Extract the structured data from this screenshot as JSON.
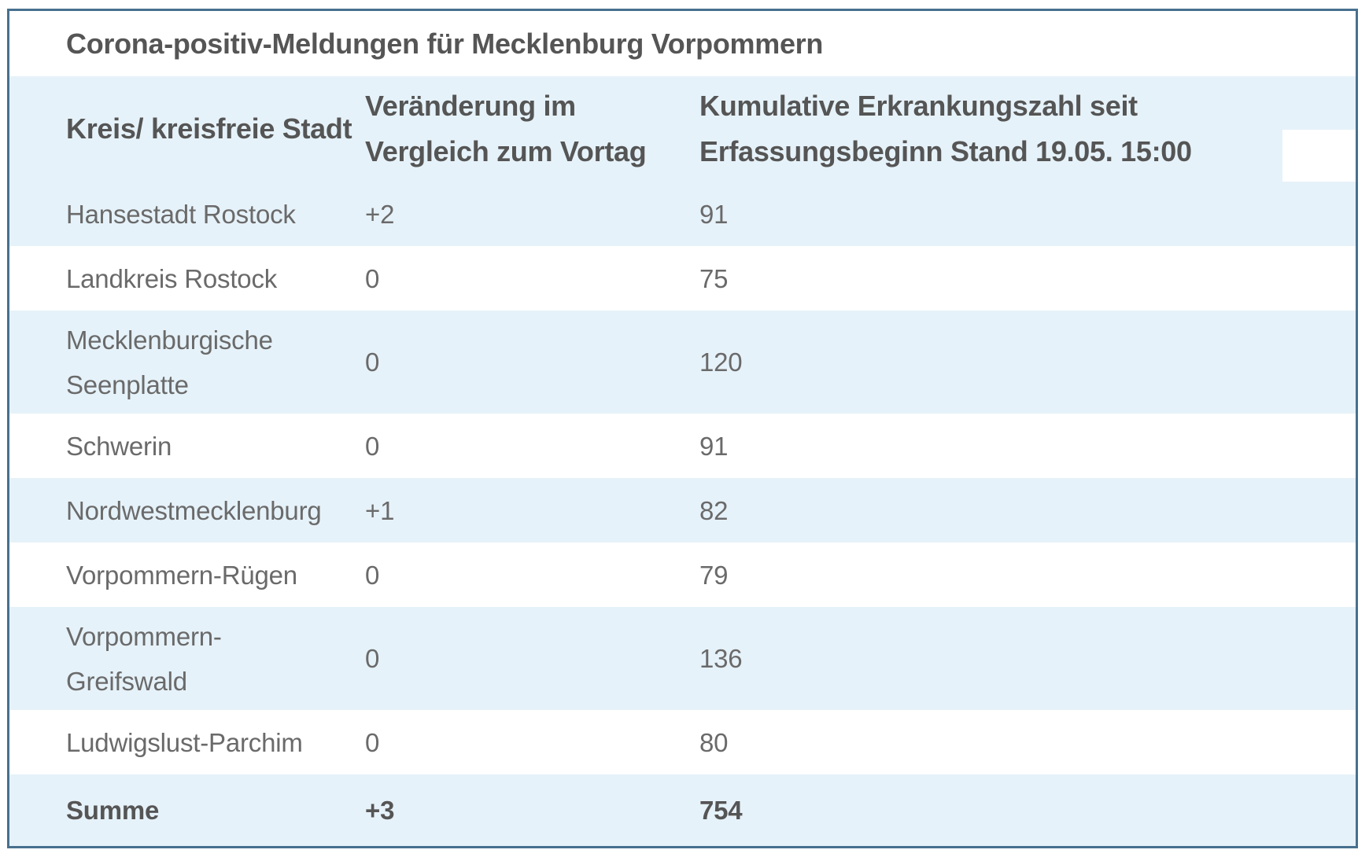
{
  "title": "Corona-positiv-Meldungen für Mecklenburg Vorpommern",
  "table": {
    "columns": [
      {
        "label": "Kreis/ kreisfreie Stadt"
      },
      {
        "label": "Veränderung im\nVergleich zum Vortag"
      },
      {
        "label": "Kumulative Erkrankungszahl seit\nErfassungsbeginn Stand 19.05. 15:00"
      }
    ],
    "rows": [
      {
        "kreis": "Hansestadt Rostock",
        "change": "+2",
        "cumulative": "91"
      },
      {
        "kreis": "Landkreis Rostock",
        "change": "0",
        "cumulative": "75"
      },
      {
        "kreis": "Mecklenburgische\nSeenplatte",
        "change": "0",
        "cumulative": "120"
      },
      {
        "kreis": "Schwerin",
        "change": "0",
        "cumulative": "91"
      },
      {
        "kreis": "Nordwestmecklenburg",
        "change": "+1",
        "cumulative": "82"
      },
      {
        "kreis": "Vorpommern-Rügen",
        "change": "0",
        "cumulative": "79"
      },
      {
        "kreis": "Vorpommern-\nGreifswald",
        "change": "0",
        "cumulative": "136"
      },
      {
        "kreis": "Ludwigslust-Parchim",
        "change": "0",
        "cumulative": "80"
      }
    ],
    "total_row": {
      "kreis": "Summe",
      "change": "+3",
      "cumulative": "754"
    }
  },
  "colors": {
    "border": "#48708e",
    "row_highlight": "#e6f2f9",
    "body_text": "#6a6a6a",
    "heading_text": "#555555",
    "background": "#ffffff"
  }
}
